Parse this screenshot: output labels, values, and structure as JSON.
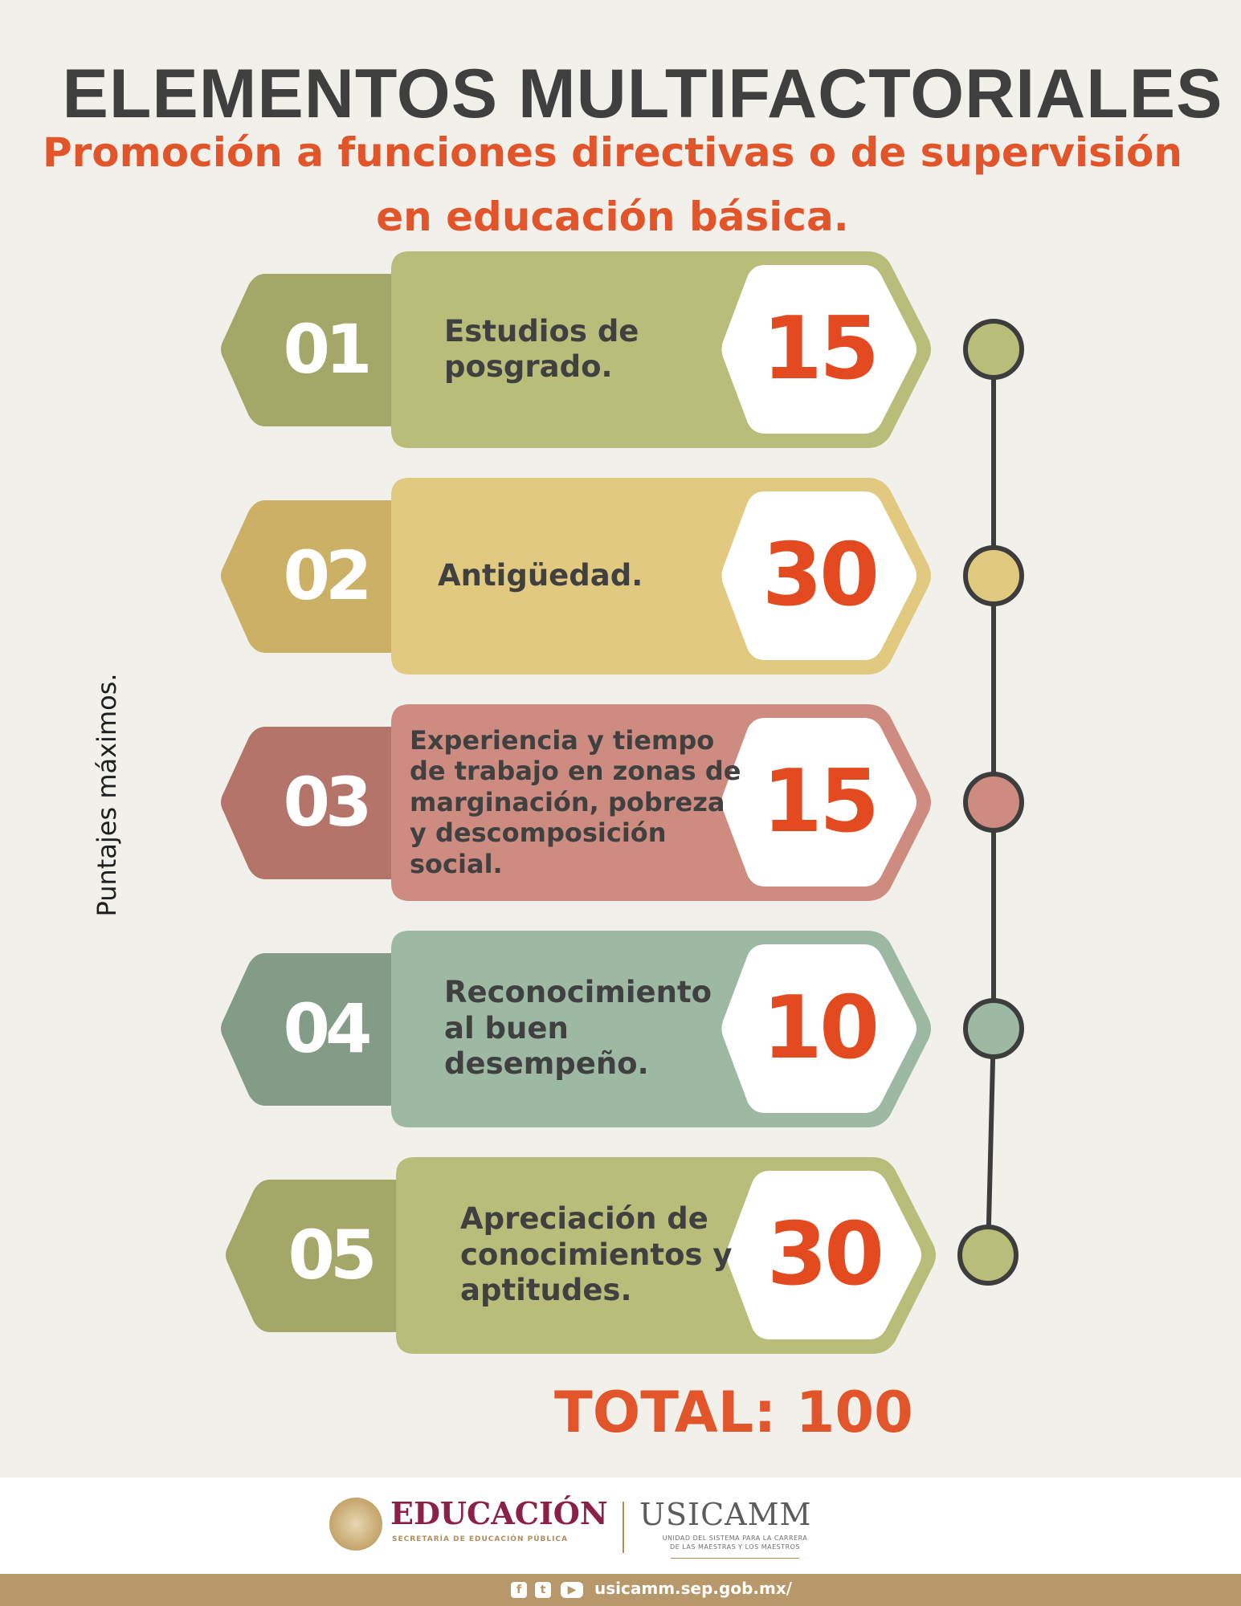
{
  "header": {
    "title": "ELEMENTOS MULTIFACTORIALES",
    "subtitle_line1": "Promoción a funciones directivas o de supervisión",
    "subtitle_line2": "en educación básica."
  },
  "side_label": "Puntajes máximos.",
  "items": [
    {
      "number": "01",
      "label_lines": [
        "Estudios de",
        "posgrado."
      ],
      "value": "15",
      "color": "#b8bd79",
      "tab_color": "#a3a767"
    },
    {
      "number": "02",
      "label_lines": [
        "Antigüedad."
      ],
      "value": "30",
      "color": "#e2c980",
      "tab_color": "#cbb066"
    },
    {
      "number": "03",
      "label_lines": [
        "Experiencia y tiempo",
        "de trabajo en zonas de",
        "marginación, pobreza",
        "y descomposición",
        "social."
      ],
      "value": "15",
      "color": "#ce8b80",
      "tab_color": "#b4746a"
    },
    {
      "number": "04",
      "label_lines": [
        "Reconocimiento",
        "al buen",
        "desempeño."
      ],
      "value": "10",
      "color": "#9db9a3",
      "tab_color": "#829c88"
    },
    {
      "number": "05",
      "label_lines": [
        "Apreciación de",
        "conocimientos y",
        "aptitudes."
      ],
      "value": "30",
      "color": "#b8bd79",
      "tab_color": "#a3a767"
    }
  ],
  "total": "TOTAL: 100",
  "footer": {
    "education_name": "EDUCACIÓN",
    "education_sub": "SECRETARÍA DE EDUCACIÓN PÚBLICA",
    "usicamm_name": "USICAMM",
    "usicamm_sub_line1": "UNIDAD DEL SISTEMA PARA LA CARRERA",
    "usicamm_sub_line2": "DE LAS MAESTRAS Y LOS MAESTROS",
    "social_icons": [
      "facebook-icon",
      "twitter-icon",
      "youtube-icon"
    ],
    "website": "usicamm.sep.gob.mx/"
  },
  "colors": {
    "background": "#f1f0ea",
    "accent": "#e2542a",
    "value_text": "#e44a1f",
    "timeline_line": "#3d3d3d",
    "bottom_bar": "#b8986a"
  }
}
